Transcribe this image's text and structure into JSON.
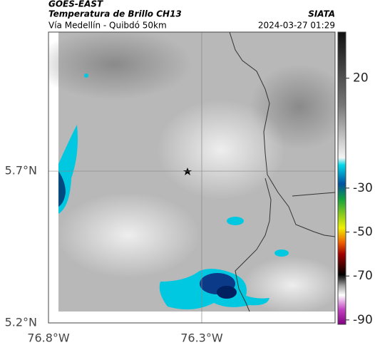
{
  "header": {
    "source": "GOES-EAST",
    "title": "Temperatura de Brillo CH13",
    "subtitle": "Vía Medellín - Quibdó 50km",
    "brand": "SIATA",
    "timestamp": "2024-03-27 01:29"
  },
  "map": {
    "xlim": [
      -76.8,
      -75.865
    ],
    "ylim": [
      5.2,
      6.158
    ],
    "xticks": [
      {
        "value": -76.8,
        "label": "76.8°W"
      },
      {
        "value": -76.3,
        "label": "76.3°W"
      }
    ],
    "yticks": [
      {
        "value": 5.2,
        "label": "5.2°N"
      },
      {
        "value": 5.7,
        "label": "5.7°N"
      }
    ]
  },
  "colorbar": {
    "clim": [
      -92,
      41
    ],
    "ticks": [
      20,
      -30,
      -50,
      -70,
      -90
    ]
  }
}
